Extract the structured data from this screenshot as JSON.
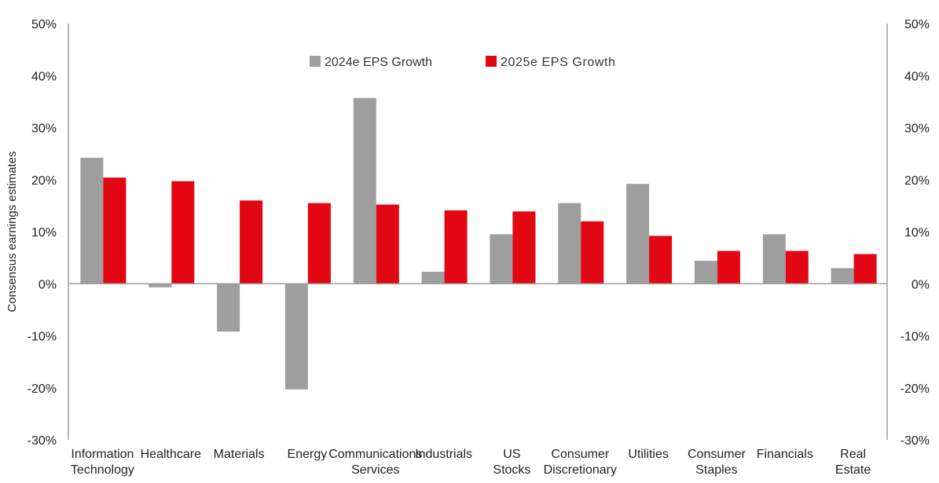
{
  "chart_data": {
    "type": "bar",
    "ylabel": "Consensus earnings estimates",
    "ylim": [
      -30,
      50
    ],
    "y_ticks": [
      "50%",
      "40%",
      "30%",
      "20%",
      "10%",
      "0%",
      "-10%",
      "-20%",
      "-30%"
    ],
    "y_tick_values": [
      50,
      40,
      30,
      20,
      10,
      0,
      -10,
      -20,
      -30
    ],
    "categories": [
      [
        "Information",
        "Technology"
      ],
      [
        "Healthcare"
      ],
      [
        "Materials"
      ],
      [
        "Energy"
      ],
      [
        "Communications",
        "Services"
      ],
      [
        "Industrials"
      ],
      [
        "US",
        "Stocks"
      ],
      [
        "Consumer",
        "Discretionary"
      ],
      [
        "Utilities"
      ],
      [
        "Consumer",
        "Staples"
      ],
      [
        "Financials"
      ],
      [
        "Real",
        "Estate"
      ]
    ],
    "series": [
      {
        "name": "2024e EPS Growth",
        "color": "#9e9e9e",
        "values": [
          24.2,
          -0.7,
          -9.2,
          -20.3,
          35.7,
          2.3,
          9.5,
          15.5,
          19.2,
          4.4,
          9.5,
          3.0
        ]
      },
      {
        "name": "2025e EPS Growth",
        "color": "#e30613",
        "values": [
          20.4,
          19.7,
          16.0,
          15.5,
          15.2,
          14.1,
          13.9,
          12.0,
          9.2,
          6.3,
          6.3,
          5.7
        ]
      }
    ],
    "legend_position": "top-center",
    "secondary_y_axis": true,
    "grid": false
  }
}
